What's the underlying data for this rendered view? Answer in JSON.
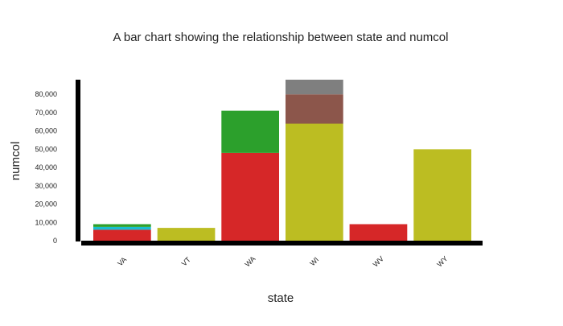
{
  "chart_data": {
    "type": "bar",
    "stacked": true,
    "title": "A bar chart showing the relationship between state and numcol",
    "xlabel": "state",
    "ylabel": "numcol",
    "categories": [
      "VA",
      "VT",
      "WA",
      "WI",
      "WV",
      "WY"
    ],
    "ylim": [
      0,
      88000
    ],
    "yticks": [
      0,
      10000,
      20000,
      30000,
      40000,
      50000,
      60000,
      70000,
      80000
    ],
    "ytick_labels": [
      "0",
      "10,000",
      "20,000",
      "30,000",
      "40,000",
      "50,000",
      "60,000",
      "70,000",
      "80,000"
    ],
    "legend": "none",
    "grid": false,
    "series": [
      {
        "color": "#d62728",
        "values": [
          6000,
          0,
          48000,
          0,
          9000,
          0
        ]
      },
      {
        "color": "#17becf",
        "values": [
          1500,
          0,
          0,
          0,
          0,
          0
        ]
      },
      {
        "color": "#2ca02c",
        "values": [
          1500,
          0,
          23000,
          0,
          0,
          0
        ]
      },
      {
        "color": "#bcbd22",
        "values": [
          0,
          7000,
          0,
          64000,
          0,
          50000
        ]
      },
      {
        "color": "#8c564b",
        "values": [
          0,
          0,
          0,
          16000,
          0,
          0
        ]
      },
      {
        "color": "#7f7f7f",
        "values": [
          0,
          0,
          0,
          9000,
          0,
          0
        ]
      }
    ]
  }
}
